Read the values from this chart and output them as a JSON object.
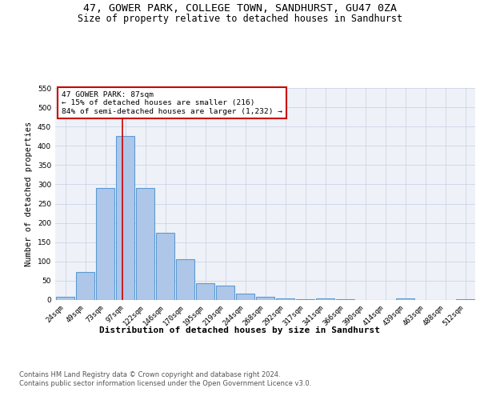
{
  "title1": "47, GOWER PARK, COLLEGE TOWN, SANDHURST, GU47 0ZA",
  "title2": "Size of property relative to detached houses in Sandhurst",
  "xlabel": "Distribution of detached houses by size in Sandhurst",
  "ylabel": "Number of detached properties",
  "categories": [
    "24sqm",
    "49sqm",
    "73sqm",
    "97sqm",
    "122sqm",
    "146sqm",
    "170sqm",
    "195sqm",
    "219sqm",
    "244sqm",
    "268sqm",
    "292sqm",
    "317sqm",
    "341sqm",
    "366sqm",
    "390sqm",
    "414sqm",
    "439sqm",
    "463sqm",
    "488sqm",
    "512sqm"
  ],
  "values": [
    8,
    72,
    290,
    425,
    290,
    175,
    105,
    44,
    37,
    16,
    8,
    5,
    3,
    4,
    3,
    0,
    0,
    5,
    0,
    0,
    3
  ],
  "bar_color": "#aec6e8",
  "bar_edge_color": "#5b9bd5",
  "bar_edge_width": 0.8,
  "red_line_x": 2.85,
  "annotation_title": "47 GOWER PARK: 87sqm",
  "annotation_line1": "← 15% of detached houses are smaller (216)",
  "annotation_line2": "84% of semi-detached houses are larger (1,232) →",
  "annotation_box_color": "#ffffff",
  "annotation_box_edge": "#cc0000",
  "red_line_color": "#cc0000",
  "ylim": [
    0,
    550
  ],
  "yticks": [
    0,
    50,
    100,
    150,
    200,
    250,
    300,
    350,
    400,
    450,
    500,
    550
  ],
  "grid_color": "#d0d8e8",
  "bg_color": "#eef2f8",
  "footer1": "Contains HM Land Registry data © Crown copyright and database right 2024.",
  "footer2": "Contains public sector information licensed under the Open Government Licence v3.0.",
  "title1_fontsize": 9.5,
  "title2_fontsize": 8.5,
  "xlabel_fontsize": 8,
  "ylabel_fontsize": 7.5,
  "tick_fontsize": 6.5,
  "annotation_fontsize": 6.8,
  "footer_fontsize": 6
}
